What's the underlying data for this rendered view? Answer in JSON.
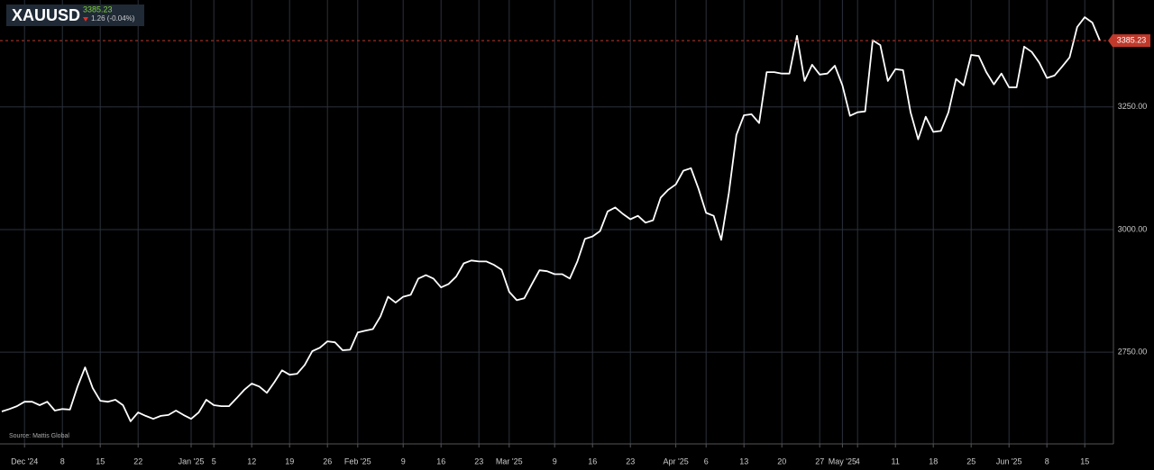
{
  "header": {
    "symbol": "XAUUSD",
    "change": "1.26 (-0.04%)"
  },
  "chart_data": {
    "type": "line",
    "source": "Source: Mattis Global",
    "categories": [
      null,
      null,
      null,
      "Dec '24",
      null,
      null,
      null,
      null,
      "8",
      null,
      null,
      null,
      null,
      "15",
      null,
      null,
      null,
      null,
      "22",
      null,
      null,
      null,
      null,
      null,
      null,
      "Jan '25",
      null,
      null,
      "5",
      null,
      null,
      null,
      null,
      "12",
      null,
      null,
      null,
      null,
      "19",
      null,
      null,
      null,
      null,
      "26",
      null,
      null,
      null,
      "Feb '25",
      null,
      null,
      null,
      null,
      null,
      "9",
      null,
      null,
      null,
      null,
      "16",
      null,
      null,
      null,
      null,
      "23",
      null,
      null,
      null,
      "Mar '25",
      null,
      null,
      null,
      null,
      null,
      "9",
      null,
      null,
      null,
      null,
      "16",
      null,
      null,
      null,
      null,
      "23",
      null,
      null,
      null,
      null,
      null,
      "Apr '25",
      null,
      null,
      null,
      "6",
      null,
      null,
      null,
      null,
      "13",
      null,
      null,
      null,
      null,
      "20",
      null,
      null,
      null,
      null,
      "27",
      null,
      null,
      "May '25",
      null,
      "4",
      null,
      null,
      null,
      null,
      "11",
      null,
      null,
      null,
      null,
      "18",
      null,
      null,
      null,
      null,
      "25",
      null,
      null,
      null,
      null,
      "Jun '25",
      null,
      null,
      null,
      null,
      "8",
      null,
      null,
      null,
      null,
      "15",
      null,
      null
    ],
    "values": [
      2629,
      2634,
      2640,
      2649,
      2649,
      2642,
      2649,
      2631,
      2634,
      2633,
      2680,
      2719,
      2677,
      2651,
      2649,
      2653,
      2642,
      2609,
      2627,
      2620,
      2614,
      2620,
      2622,
      2631,
      2622,
      2614,
      2627,
      2653,
      2642,
      2640,
      2640,
      2656,
      2673,
      2686,
      2680,
      2667,
      2689,
      2713,
      2704,
      2706,
      2724,
      2752,
      2759,
      2772,
      2770,
      2754,
      2755,
      2790,
      2794,
      2797,
      2823,
      2863,
      2851,
      2863,
      2867,
      2900,
      2907,
      2900,
      2882,
      2889,
      2904,
      2931,
      2937,
      2935,
      2935,
      2928,
      2918,
      2873,
      2856,
      2860,
      2889,
      2917,
      2915,
      2909,
      2909,
      2900,
      2935,
      2981,
      2986,
      2997,
      3037,
      3045,
      3032,
      3021,
      3028,
      3014,
      3019,
      3065,
      3081,
      3092,
      3120,
      3125,
      3083,
      3034,
      3028,
      2979,
      3074,
      3193,
      3233,
      3235,
      3217,
      3321,
      3321,
      3318,
      3318,
      3395,
      3303,
      3336,
      3316,
      3318,
      3334,
      3294,
      3232,
      3239,
      3241,
      3386,
      3376,
      3303,
      3327,
      3325,
      3239,
      3184,
      3230,
      3199,
      3201,
      3239,
      3307,
      3294,
      3356,
      3354,
      3321,
      3296,
      3318,
      3290,
      3290,
      3373,
      3362,
      3340,
      3309,
      3314,
      3332,
      3351,
      3413,
      3433,
      3422,
      3385.23
    ],
    "color": "#ffffff",
    "ylim": [
      2563,
      3468
    ],
    "yticks": [
      {
        "value": 2750,
        "label": "2750.00"
      },
      {
        "value": 3000,
        "label": "3000.00"
      },
      {
        "value": 3250,
        "label": "3250.00"
      }
    ],
    "grid": true
  }
}
